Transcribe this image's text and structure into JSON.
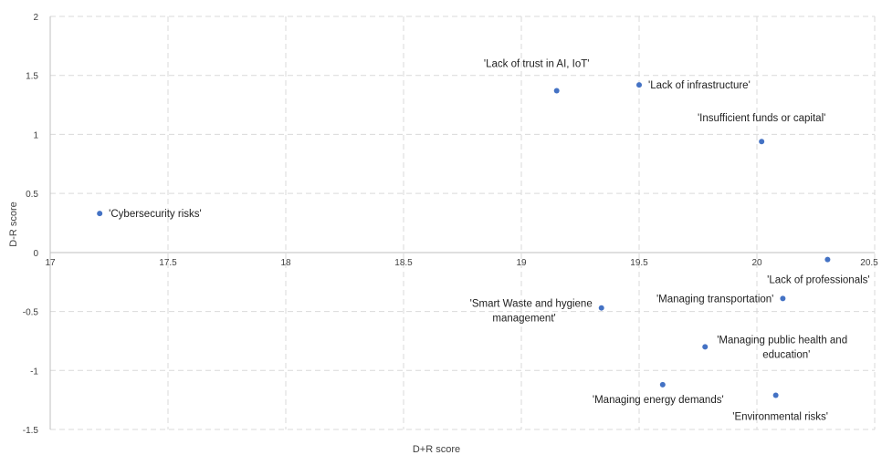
{
  "chart_data": {
    "type": "scatter",
    "title": "",
    "xlabel": "D+R score",
    "ylabel": "D-R score",
    "xlim": [
      17,
      20.5
    ],
    "ylim": [
      -1.5,
      2
    ],
    "x_ticks": [
      "17",
      "17.5",
      "18",
      "18.5",
      "19",
      "19.5",
      "20",
      "20.5"
    ],
    "y_ticks": [
      "2",
      "1.5",
      "1",
      "0.5",
      "0",
      "-0.5",
      "-1",
      "-1.5"
    ],
    "grid": true,
    "marker_color": "#4472C4",
    "points": [
      {
        "label": "'Cybersecurity risks'",
        "x": 17.21,
        "y": 0.33
      },
      {
        "label": "'Lack of trust in AI, IoT'",
        "x": 19.15,
        "y": 1.37
      },
      {
        "label": "'Lack of infrastructure'",
        "x": 19.5,
        "y": 1.42
      },
      {
        "label": "'Insufficient funds or capital'",
        "x": 20.02,
        "y": 0.94
      },
      {
        "label": "'Lack of professionals'",
        "x": 20.3,
        "y": -0.06
      },
      {
        "label": "'Managing transportation'",
        "x": 20.11,
        "y": -0.39
      },
      {
        "label": "'Smart Waste and hygiene management'",
        "x": 19.34,
        "y": -0.47
      },
      {
        "label": "'Managing public health and education'",
        "x": 19.78,
        "y": -0.8
      },
      {
        "label": "'Managing energy demands'",
        "x": 19.6,
        "y": -1.12
      },
      {
        "label": "'Environmental risks'",
        "x": 20.08,
        "y": -1.21
      }
    ]
  }
}
